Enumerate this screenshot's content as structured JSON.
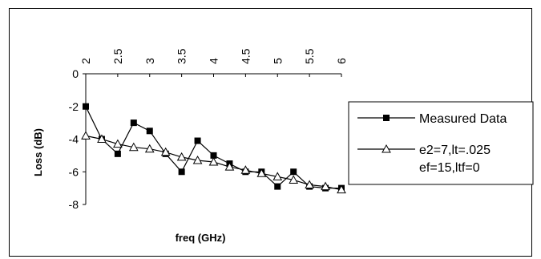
{
  "chart_data": {
    "type": "line",
    "title": "",
    "xlabel": "freq (GHz)",
    "ylabel": "Loss (dB)",
    "xlim": [
      2,
      6
    ],
    "ylim": [
      -8,
      0
    ],
    "x_ticks": [
      "2",
      "2.5",
      "3",
      "3.5",
      "4",
      "4.5",
      "5",
      "5.5",
      "6"
    ],
    "y_ticks": [
      "0",
      "-2",
      "-4",
      "-6",
      "-8"
    ],
    "grid": false,
    "legend_position": "right",
    "series": [
      {
        "name": "Measured Data",
        "marker": "filled-square",
        "x": [
          2.0,
          2.25,
          2.5,
          2.75,
          3.0,
          3.25,
          3.5,
          3.75,
          4.0,
          4.25,
          4.5,
          4.75,
          5.0,
          5.25,
          5.5,
          5.75,
          6.0
        ],
        "y": [
          -2.0,
          -4.0,
          -4.9,
          -3.0,
          -3.5,
          -4.9,
          -6.0,
          -4.1,
          -5.0,
          -5.5,
          -6.0,
          -6.0,
          -6.9,
          -6.0,
          -6.9,
          -7.0,
          -7.0
        ]
      },
      {
        "name": "e2=7,lt=.025\nef=15,ltf=0",
        "marker": "open-triangle",
        "x": [
          2.0,
          2.25,
          2.5,
          2.75,
          3.0,
          3.25,
          3.5,
          3.75,
          4.0,
          4.25,
          4.5,
          4.75,
          5.0,
          5.25,
          5.5,
          5.75,
          6.0
        ],
        "y": [
          -3.8,
          -4.0,
          -4.3,
          -4.5,
          -4.6,
          -4.8,
          -5.1,
          -5.3,
          -5.4,
          -5.7,
          -5.9,
          -6.1,
          -6.3,
          -6.5,
          -6.8,
          -6.9,
          -7.1
        ]
      }
    ]
  },
  "legend": {
    "entry1": "Measured Data",
    "entry2_line1": "e2=7,lt=.025",
    "entry2_line2": "ef=15,ltf=0"
  }
}
